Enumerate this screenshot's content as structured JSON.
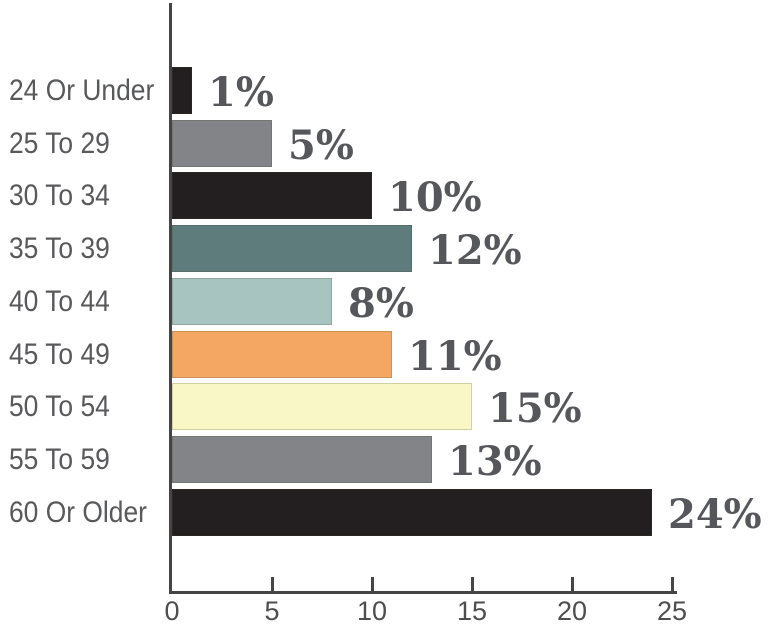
{
  "chart_data": {
    "type": "bar",
    "orientation": "horizontal",
    "title": "",
    "xlabel": "",
    "ylabel": "",
    "categories": [
      "24 Or Under",
      "25 To 29",
      "30 To 34",
      "35 To 39",
      "40 To 44",
      "45 To 49",
      "50 To 54",
      "55 To 59",
      "60 Or Older"
    ],
    "values": [
      1,
      5,
      10,
      12,
      8,
      11,
      15,
      13,
      24
    ],
    "value_labels": [
      "1%",
      "5%",
      "10%",
      "12%",
      "8%",
      "11%",
      "15%",
      "13%",
      "24%"
    ],
    "bar_colors": [
      "#231f20",
      "#828487",
      "#231f20",
      "#5f7c7c",
      "#a7c4c1",
      "#f4a763",
      "#faf7c6",
      "#828487",
      "#231f20"
    ],
    "xlim": [
      0,
      25
    ],
    "x_ticks": [
      0,
      5,
      10,
      15,
      20,
      25
    ],
    "x_tick_labels": [
      "0",
      "5",
      "10",
      "15",
      "20",
      "25"
    ],
    "grid": false,
    "legend": false,
    "axis_color": "#454547",
    "category_label_color": "#58595b",
    "value_label_color": "#56575a"
  }
}
